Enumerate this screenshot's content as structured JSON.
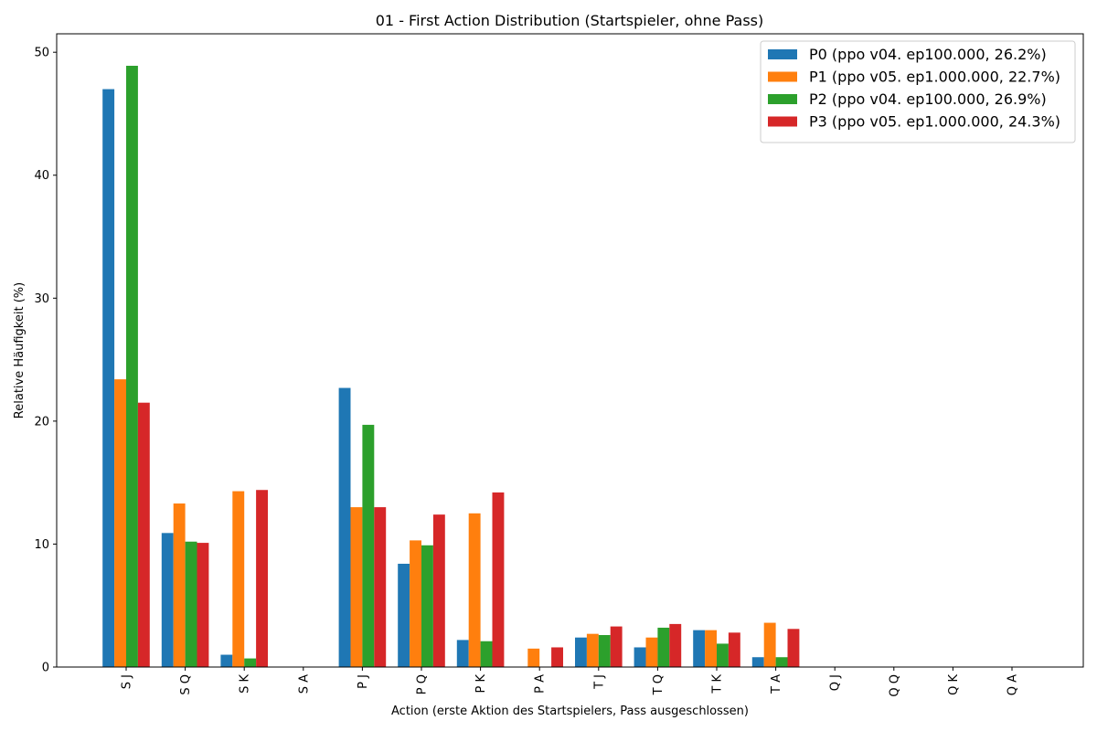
{
  "chart_data": {
    "type": "bar",
    "title": "01 - First Action Distribution (Startspieler, ohne Pass)",
    "xlabel": "Action (erste Aktion des Startspielers, Pass ausgeschlossen)",
    "ylabel": "Relative Häufigkeit (%)",
    "ylim": [
      0,
      51.5
    ],
    "yticks": [
      0,
      10,
      20,
      30,
      40,
      50
    ],
    "legend_position": "top-right",
    "grid": false,
    "categories": [
      "S J",
      "S Q",
      "S K",
      "S A",
      "P J",
      "P Q",
      "P K",
      "P A",
      "T J",
      "T Q",
      "T K",
      "T A",
      "Q J",
      "Q Q",
      "Q K",
      "Q A"
    ],
    "series": [
      {
        "name": "P0 (ppo v04. ep100.000, 26.2%)",
        "color": "#1f77b4",
        "values": [
          47.0,
          10.9,
          1.0,
          0,
          22.7,
          8.4,
          2.2,
          0,
          2.4,
          1.6,
          3.0,
          0.8,
          0,
          0,
          0,
          0
        ]
      },
      {
        "name": "P1 (ppo v05. ep1.000.000, 22.7%)",
        "color": "#ff7f0e",
        "values": [
          23.4,
          13.3,
          14.3,
          0,
          13.0,
          10.3,
          12.5,
          1.5,
          2.7,
          2.4,
          3.0,
          3.6,
          0,
          0,
          0,
          0
        ]
      },
      {
        "name": "P2 (ppo v04. ep100.000, 26.9%)",
        "color": "#2ca02c",
        "values": [
          48.9,
          10.2,
          0.7,
          0,
          19.7,
          9.9,
          2.1,
          0,
          2.6,
          3.2,
          1.9,
          0.8,
          0,
          0,
          0,
          0
        ]
      },
      {
        "name": "P3 (ppo v05. ep1.000.000, 24.3%)",
        "color": "#d62728",
        "values": [
          21.5,
          10.1,
          14.4,
          0,
          13.0,
          12.4,
          14.2,
          1.6,
          3.3,
          3.5,
          2.8,
          3.1,
          0,
          0,
          0,
          0
        ]
      }
    ]
  }
}
